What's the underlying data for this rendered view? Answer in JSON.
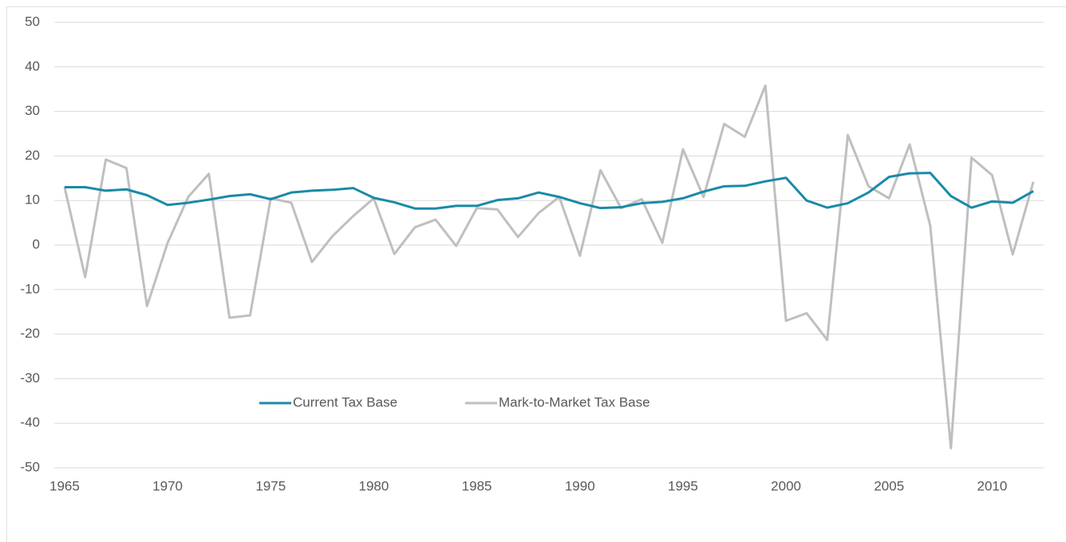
{
  "chart_data": {
    "type": "line",
    "x": [
      1965,
      1966,
      1967,
      1968,
      1969,
      1970,
      1971,
      1972,
      1973,
      1974,
      1975,
      1976,
      1977,
      1978,
      1979,
      1980,
      1981,
      1982,
      1983,
      1984,
      1985,
      1986,
      1987,
      1988,
      1989,
      1990,
      1991,
      1992,
      1993,
      1994,
      1995,
      1996,
      1997,
      1998,
      1999,
      2000,
      2001,
      2002,
      2003,
      2004,
      2005,
      2006,
      2007,
      2008,
      2009,
      2010,
      2011,
      2012
    ],
    "series": [
      {
        "name": "Current Tax Base",
        "color": "#1a8aa8",
        "values": [
          13,
          13,
          12.2,
          12.5,
          11.2,
          9,
          9.5,
          10.2,
          11,
          11.4,
          10.3,
          11.8,
          12.2,
          12.4,
          12.8,
          10.6,
          9.6,
          8.2,
          8.2,
          8.8,
          8.8,
          10.1,
          10.5,
          11.8,
          10.8,
          9.4,
          8.3,
          8.5,
          9.4,
          9.7,
          10.5,
          12,
          13.2,
          13.3,
          14.3,
          15.1,
          10,
          8.4,
          9.4,
          11.8,
          15.3,
          16.1,
          16.2,
          11,
          8.4,
          9.8,
          9.5,
          12.1
        ]
      },
      {
        "name": "Mark-to-Market Tax Base",
        "color": "#bfbfbf",
        "values": [
          13,
          -7.2,
          19.2,
          17.3,
          -13.7,
          0.5,
          10.8,
          16,
          -16.3,
          -15.8,
          10.5,
          9.5,
          -3.8,
          2,
          6.5,
          10.5,
          -2,
          4,
          5.7,
          -0.2,
          8.3,
          8,
          1.8,
          7.2,
          10.8,
          -2.4,
          16.8,
          8.3,
          10.3,
          0.5,
          21.5,
          10.8,
          27.2,
          24.3,
          35.8,
          -17,
          -15.3,
          -21.3,
          24.7,
          13.2,
          10.5,
          22.6,
          4.3,
          -45.6,
          19.6,
          15.7,
          -2.1,
          14.2
        ]
      }
    ],
    "xlim": [
      1964.5,
      2012.5
    ],
    "xticks": [
      1965,
      1970,
      1975,
      1980,
      1985,
      1990,
      1995,
      2000,
      2005,
      2010
    ],
    "ylim": [
      -50,
      50
    ],
    "yticks": [
      -50,
      -40,
      -30,
      -20,
      -10,
      0,
      10,
      20,
      30,
      40,
      50
    ],
    "grid": true,
    "legend": "lower-left"
  }
}
